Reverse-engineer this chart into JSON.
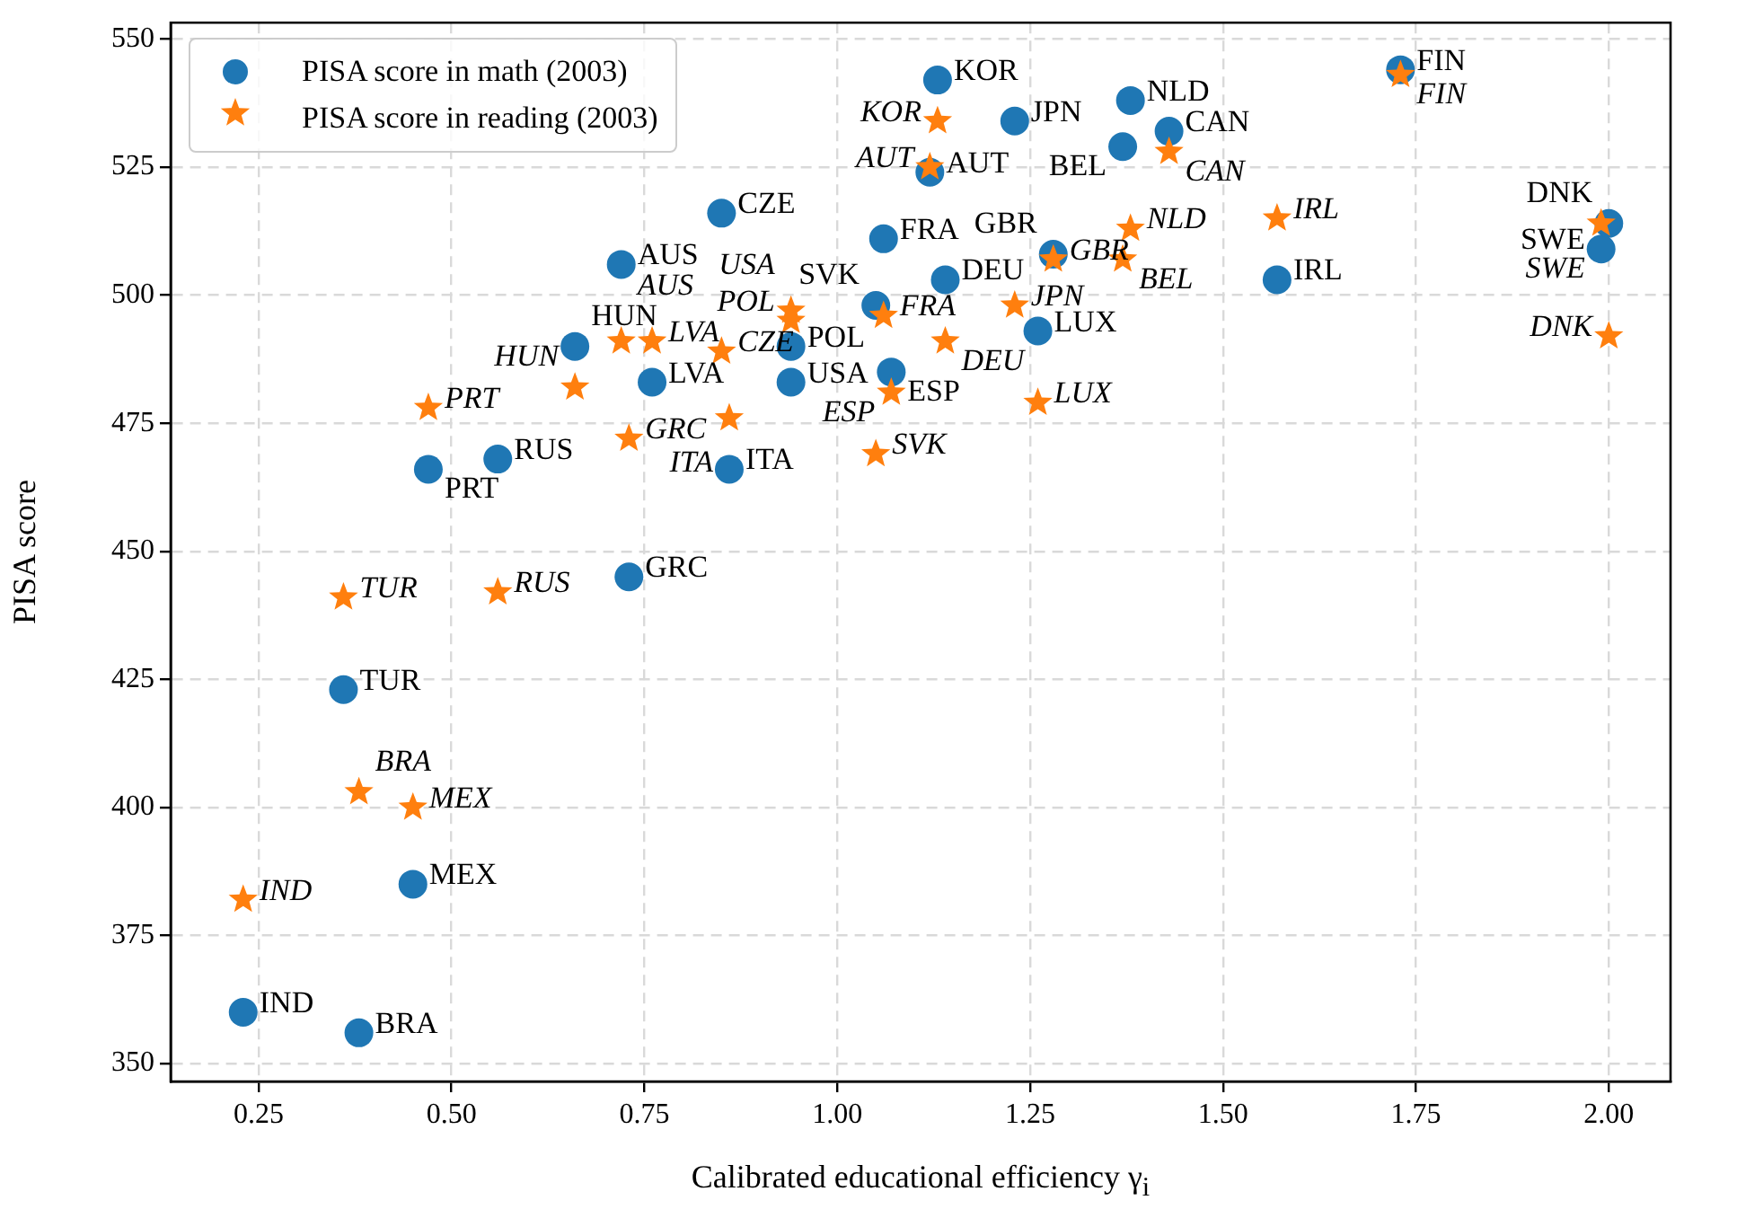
{
  "chart_data": {
    "type": "scatter",
    "xlabel": "Calibrated educational efficiency γ$_{i}$",
    "ylabel": "PISA score",
    "xlim": [
      0.136,
      2.08
    ],
    "xticks": [
      {
        "value": 0.25,
        "label": "0.25"
      },
      {
        "value": 0.5,
        "label": "0.50"
      },
      {
        "value": 0.75,
        "label": "0.75"
      },
      {
        "value": 1,
        "label": "1.00"
      },
      {
        "value": 1.25,
        "label": "1.25"
      },
      {
        "value": 1.5,
        "label": "1.50"
      },
      {
        "value": 1.75,
        "label": "1.75"
      },
      {
        "value": 2,
        "label": "2.00"
      }
    ],
    "ylim": [
      346.5,
      553.2
    ],
    "yticks": [
      350,
      375,
      400,
      425,
      450,
      475,
      500,
      525,
      550
    ],
    "grid": true,
    "legend": "top left",
    "series": [
      {
        "name": "PISA score in math (2003)",
        "color": "#1f77b4",
        "marker": "circle",
        "x": [
          0.23,
          0.38,
          0.45,
          0.36,
          0.73,
          0.47,
          0.56,
          0.66,
          0.72,
          0.76,
          0.85,
          0.86,
          0.94,
          0.94,
          1.06,
          1.05,
          1.07,
          1.14,
          1.12,
          1.13,
          1.23,
          1.26,
          1.28,
          1.38,
          1.37,
          1.43,
          1.57,
          1.73,
          1.99,
          2.0
        ],
        "values": [
          360,
          356,
          385,
          423,
          445,
          466,
          468,
          490,
          506,
          483,
          516,
          466,
          490,
          483,
          511,
          498,
          485,
          503,
          524,
          542,
          534,
          493,
          508,
          538,
          529,
          532,
          503,
          544,
          509,
          514
        ]
      },
      {
        "name": "PISA score in reading (2003)",
        "color": "#ff7f0e",
        "marker": "star",
        "x": [
          0.23,
          0.38,
          0.45,
          0.36,
          0.73,
          0.47,
          0.56,
          0.66,
          0.72,
          0.76,
          0.85,
          0.86,
          0.94,
          0.94,
          1.06,
          1.05,
          1.07,
          1.14,
          1.12,
          1.13,
          1.23,
          1.26,
          1.28,
          1.38,
          1.37,
          1.43,
          1.57,
          1.73,
          1.99,
          2.0
        ],
        "values": [
          382,
          403,
          400,
          441,
          472,
          478,
          442,
          482,
          491,
          491,
          489,
          476,
          497,
          495,
          496,
          469,
          481,
          491,
          525,
          534,
          498,
          479,
          507,
          513,
          507,
          528,
          515,
          543,
          514,
          492
        ]
      }
    ],
    "annotations": [
      {
        "text": "IND",
        "x": 0.23,
        "y": 360
      },
      {
        "text": "BRA",
        "x": 0.38,
        "y": 356
      },
      {
        "text": "MEX",
        "x": 0.45,
        "y": 385
      },
      {
        "text": "TUR",
        "x": 0.36,
        "y": 423
      },
      {
        "text": "GRC",
        "x": 0.73,
        "y": 445
      },
      {
        "text": "PRT",
        "x": 0.47,
        "y": 466
      },
      {
        "text": "RUS",
        "x": 0.56,
        "y": 468
      },
      {
        "text": "HUN",
        "x": 0.66,
        "y": 490
      },
      {
        "text": "AUS",
        "x": 0.72,
        "y": 506
      },
      {
        "text": "LVA",
        "x": 0.76,
        "y": 483
      },
      {
        "text": "CZE",
        "x": 0.85,
        "y": 516
      },
      {
        "text": "ITA",
        "x": 0.86,
        "y": 466
      },
      {
        "text": "POL",
        "x": 0.94,
        "y": 490
      },
      {
        "text": "USA",
        "x": 0.94,
        "y": 483
      },
      {
        "text": "FRA",
        "x": 1.06,
        "y": 511
      },
      {
        "text": "SVK",
        "x": 1.05,
        "y": 498
      },
      {
        "text": "ESP",
        "x": 1.07,
        "y": 485
      },
      {
        "text": "DEU",
        "x": 1.14,
        "y": 503
      },
      {
        "text": "AUT",
        "x": 1.12,
        "y": 524
      },
      {
        "text": "KOR",
        "x": 1.13,
        "y": 542
      },
      {
        "text": "JPN",
        "x": 1.23,
        "y": 534
      },
      {
        "text": "LUX",
        "x": 1.26,
        "y": 493
      },
      {
        "text": "GBR",
        "x": 1.28,
        "y": 508
      },
      {
        "text": "NLD",
        "x": 1.38,
        "y": 538
      },
      {
        "text": "BEL",
        "x": 1.37,
        "y": 529
      },
      {
        "text": "CAN",
        "x": 1.43,
        "y": 532
      },
      {
        "text": "IRL",
        "x": 1.57,
        "y": 503
      },
      {
        "text": "FIN",
        "x": 1.73,
        "y": 544
      },
      {
        "text": "SWE",
        "x": 1.99,
        "y": 509
      },
      {
        "text": "DNK",
        "x": 2.0,
        "y": 514
      },
      {
        "text": "IND",
        "x": 0.23,
        "y": 382
      },
      {
        "text": "BRA",
        "x": 0.38,
        "y": 403
      },
      {
        "text": "MEX",
        "x": 0.45,
        "y": 400
      },
      {
        "text": "TUR",
        "x": 0.36,
        "y": 441
      },
      {
        "text": "GRC",
        "x": 0.73,
        "y": 472
      },
      {
        "text": "PRT",
        "x": 0.47,
        "y": 478
      },
      {
        "text": "RUS",
        "x": 0.56,
        "y": 442
      },
      {
        "text": "HUN",
        "x": 0.66,
        "y": 482
      },
      {
        "text": "AUS",
        "x": 0.72,
        "y": 491
      },
      {
        "text": "LVA",
        "x": 0.76,
        "y": 491
      },
      {
        "text": "CZE",
        "x": 0.85,
        "y": 489
      },
      {
        "text": "ITA",
        "x": 0.86,
        "y": 476
      },
      {
        "text": "POL",
        "x": 0.94,
        "y": 497
      },
      {
        "text": "USA",
        "x": 0.94,
        "y": 495
      },
      {
        "text": "FRA",
        "x": 1.06,
        "y": 496
      },
      {
        "text": "SVK",
        "x": 1.05,
        "y": 469
      },
      {
        "text": "ESP",
        "x": 1.07,
        "y": 481
      },
      {
        "text": "DEU",
        "x": 1.14,
        "y": 491
      },
      {
        "text": "AUT",
        "x": 1.12,
        "y": 525
      },
      {
        "text": "KOR",
        "x": 1.13,
        "y": 534
      },
      {
        "text": "JPN",
        "x": 1.23,
        "y": 498
      },
      {
        "text": "LUX",
        "x": 1.26,
        "y": 479
      },
      {
        "text": "GBR",
        "x": 1.28,
        "y": 507
      },
      {
        "text": "NLD",
        "x": 1.38,
        "y": 513
      },
      {
        "text": "BEL",
        "x": 1.37,
        "y": 507
      },
      {
        "text": "CAN",
        "x": 1.43,
        "y": 528
      },
      {
        "text": "IRL",
        "x": 1.57,
        "y": 515
      },
      {
        "text": "FIN",
        "x": 1.73,
        "y": 543
      },
      {
        "text": "SWE",
        "x": 1.99,
        "y": 514
      },
      {
        "text": "DNK",
        "x": 2.0,
        "y": 492
      }
    ]
  }
}
